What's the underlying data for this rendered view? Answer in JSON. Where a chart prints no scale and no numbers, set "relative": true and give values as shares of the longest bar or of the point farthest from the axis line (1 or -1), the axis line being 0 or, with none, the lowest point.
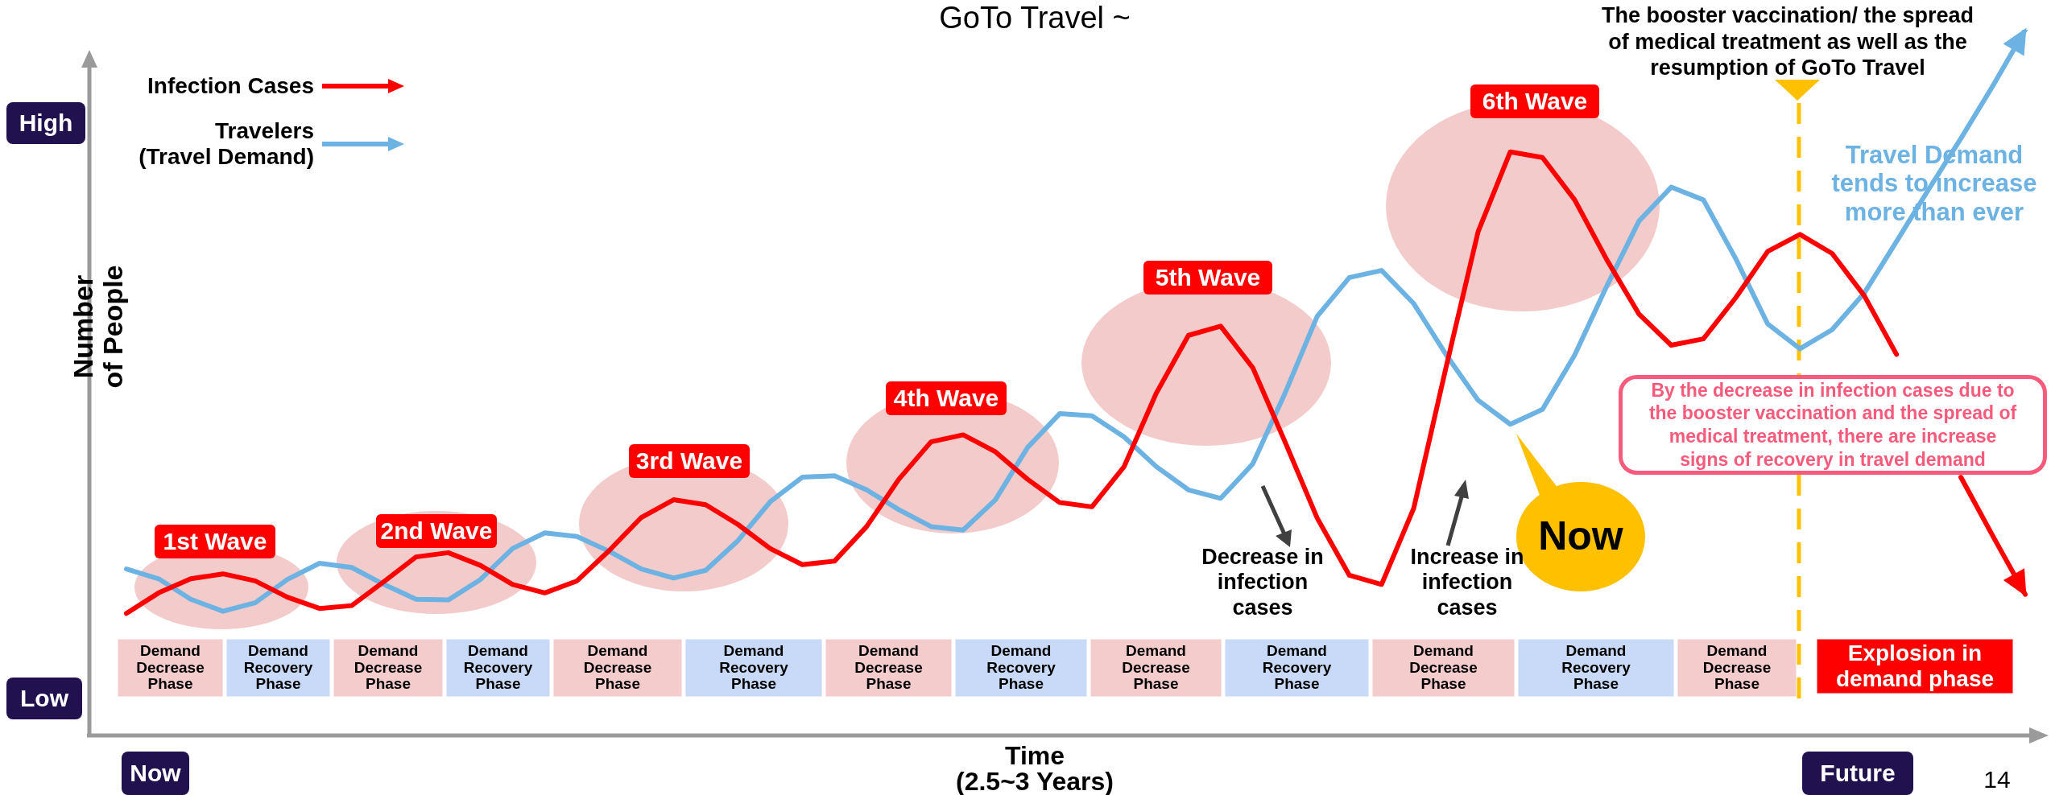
{
  "chart_data": {
    "type": "line",
    "relative": true,
    "title": "GoTo Travel ~",
    "xlabel": "Time\n(2.5~3 Years)",
    "ylabel": "Number\nof People",
    "legend": "top left",
    "marker": "none",
    "categories": [
      null,
      null,
      null,
      null,
      null,
      null,
      null,
      null,
      null,
      null,
      null,
      null,
      null,
      null,
      null,
      null,
      null,
      null,
      null,
      null,
      null,
      null,
      null,
      null,
      null,
      null,
      null,
      null,
      null,
      null,
      null,
      null,
      null,
      null,
      null,
      null,
      null,
      null,
      null,
      null,
      null,
      null,
      null,
      null,
      null,
      null,
      null,
      null,
      null,
      null,
      null,
      null,
      null,
      null,
      null,
      null,
      null,
      null,
      null,
      null
    ],
    "series": [
      {
        "name": "Infection Cases",
        "color": "#ff0000",
        "values": [
          0.173,
          0.202,
          0.222,
          0.229,
          0.219,
          0.196,
          0.18,
          0.184,
          0.218,
          0.253,
          0.259,
          0.241,
          0.214,
          0.202,
          0.219,
          0.262,
          0.309,
          0.334,
          0.327,
          0.299,
          0.265,
          0.242,
          0.247,
          0.296,
          0.363,
          0.416,
          0.426,
          0.402,
          0.363,
          0.33,
          0.324,
          0.381,
          0.485,
          0.567,
          0.58,
          0.521,
          0.416,
          0.308,
          0.227,
          0.214,
          0.322,
          0.521,
          0.714,
          0.827,
          0.819,
          0.759,
          0.674,
          0.597,
          0.553,
          0.562,
          0.62,
          0.686,
          0.71,
          0.683,
          0.623,
          0.54,
          null,
          0.366,
          0.282,
          0.2
        ]
      },
      {
        "name": "Travelers\n(Travel Demand)",
        "color": "#6cb2e2",
        "values": [
          0.236,
          0.222,
          0.193,
          0.176,
          0.188,
          0.221,
          0.244,
          0.238,
          0.214,
          0.193,
          0.192,
          0.221,
          0.265,
          0.287,
          0.282,
          0.261,
          0.236,
          0.223,
          0.234,
          0.276,
          0.331,
          0.366,
          0.368,
          0.348,
          0.32,
          0.296,
          0.291,
          0.334,
          0.408,
          0.456,
          0.453,
          0.423,
          0.381,
          0.348,
          0.336,
          0.385,
          0.485,
          0.594,
          0.649,
          0.659,
          0.612,
          0.54,
          0.475,
          0.441,
          0.462,
          0.539,
          0.637,
          0.729,
          0.777,
          0.759,
          0.676,
          0.583,
          0.548,
          0.575,
          0.627,
          0.7,
          0.774,
          0.846,
          0.921,
          1
        ]
      }
    ],
    "annotations": [
      "High",
      "Low",
      "Now",
      "Future",
      "1st Wave",
      "2nd Wave",
      "3rd Wave",
      "4th Wave",
      "5th Wave",
      "6th Wave",
      "Decrease in\ninfection\ncases",
      "Increase in\ninfection\ncases",
      "Now",
      "The booster vaccination/ the spread\nof medical treatment as well as the\nresumption of GoTo Travel",
      "Travel Demand\ntends to increase\nmore than ever",
      "By the decrease in infection cases due to\nthe booster vaccination and the spread of\nmedical treatment, there are increase\nsigns of recovery in travel demand",
      "Demand\nDecrease\nPhase",
      "Demand\nRecovery\nPhase",
      "Demand\nDecrease\nPhase",
      "Demand\nRecovery\nPhase",
      "Demand\nDecrease\nPhase",
      "Demand\nRecovery\nPhase",
      "Demand\nDecrease\nPhase",
      "Demand\nRecovery\nPhase",
      "Demand\nDecrease\nPhase",
      "Demand\nRecovery\nPhase",
      "Demand\nDecrease\nPhase",
      "Demand\nRecovery\nPhase",
      "Demand\nDecrease\nPhase",
      "Explosion in\ndemand phase",
      "14"
    ]
  }
}
